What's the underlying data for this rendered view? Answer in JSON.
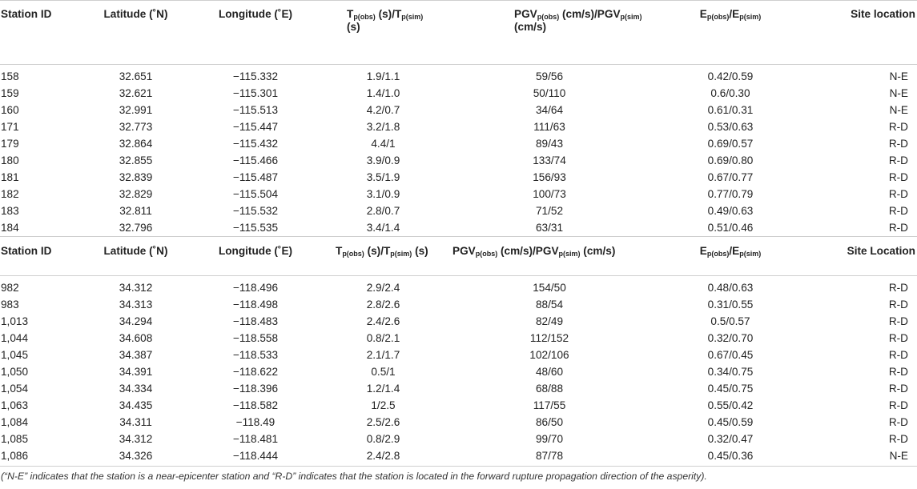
{
  "header": {
    "station_id": "Station ID",
    "latitude": "Latitude (˚N)",
    "longitude": "Longitude (˚E)",
    "t_T": "T",
    "t_obs": "p(obs)",
    "t_mid": " (s)/T",
    "t_sim": "p(sim)",
    "t_end1": "",
    "t_unit1": "(s)",
    "t_end2": " (s)",
    "pgv_A": "PGV",
    "pgv_obs": "p(obs)",
    "pgv_mid": " (cm/s)/PGV",
    "pgv_sim": "p(sim)",
    "pgv_unit1": "(cm/s)",
    "pgv_end2": " (cm/s)",
    "e_E": "E",
    "e_obs": "p(obs)",
    "e_mid": "/E",
    "e_sim": "p(sim)",
    "site1": "Site location",
    "site2": "Site Location"
  },
  "table1": [
    [
      "158",
      "32.651",
      "−115.332",
      "1.9/1.1",
      "59/56",
      "0.42/0.59",
      "N-E"
    ],
    [
      "159",
      "32.621",
      "−115.301",
      "1.4/1.0",
      "50/110",
      "0.6/0.30",
      "N-E"
    ],
    [
      "160",
      "32.991",
      "−115.513",
      "4.2/0.7",
      "34/64",
      "0.61/0.31",
      "N-E"
    ],
    [
      "171",
      "32.773",
      "−115.447",
      "3.2/1.8",
      "111/63",
      "0.53/0.63",
      "R-D"
    ],
    [
      "179",
      "32.864",
      "−115.432",
      "4.4/1",
      "89/43",
      "0.69/0.57",
      "R-D"
    ],
    [
      "180",
      "32.855",
      "−115.466",
      "3.9/0.9",
      "133/74",
      "0.69/0.80",
      "R-D"
    ],
    [
      "181",
      "32.839",
      "−115.487",
      "3.5/1.9",
      "156/93",
      "0.67/0.77",
      "R-D"
    ],
    [
      "182",
      "32.829",
      "−115.504",
      "3.1/0.9",
      "100/73",
      "0.77/0.79",
      "R-D"
    ],
    [
      "183",
      "32.811",
      "−115.532",
      "2.8/0.7",
      "71/52",
      "0.49/0.63",
      "R-D"
    ],
    [
      "184",
      "32.796",
      "−115.535",
      "3.4/1.4",
      "63/31",
      "0.51/0.46",
      "R-D"
    ]
  ],
  "table2": [
    [
      "982",
      "34.312",
      "−118.496",
      "2.9/2.4",
      "154/50",
      "0.48/0.63",
      "R-D"
    ],
    [
      "983",
      "34.313",
      "−118.498",
      "2.8/2.6",
      "88/54",
      "0.31/0.55",
      "R-D"
    ],
    [
      "1,013",
      "34.294",
      "−118.483",
      "2.4/2.6",
      "82/49",
      "0.5/0.57",
      "R-D"
    ],
    [
      "1,044",
      "34.608",
      "−118.558",
      "0.8/2.1",
      "112/152",
      "0.32/0.70",
      "R-D"
    ],
    [
      "1,045",
      "34.387",
      "−118.533",
      "2.1/1.7",
      "102/106",
      "0.67/0.45",
      "R-D"
    ],
    [
      "1,050",
      "34.391",
      "−118.622",
      "0.5/1",
      "48/60",
      "0.34/0.75",
      "R-D"
    ],
    [
      "1,054",
      "34.334",
      "−118.396",
      "1.2/1.4",
      "68/88",
      "0.45/0.75",
      "R-D"
    ],
    [
      "1,063",
      "34.435",
      "−118.582",
      "1/2.5",
      "117/55",
      "0.55/0.42",
      "R-D"
    ],
    [
      "1,084",
      "34.311",
      "−118.49",
      "2.5/2.6",
      "86/50",
      "0.45/0.59",
      "R-D"
    ],
    [
      "1,085",
      "34.312",
      "−118.481",
      "0.8/2.9",
      "99/70",
      "0.32/0.47",
      "R-D"
    ],
    [
      "1,086",
      "34.326",
      "−118.444",
      "2.4/2.8",
      "87/78",
      "0.45/0.36",
      "N-E"
    ]
  ],
  "footnote": "(“N-E” indicates that the station is a near-epicenter station and “R-D” indicates that the station is located in the forward rupture propagation direction of the asperity)."
}
